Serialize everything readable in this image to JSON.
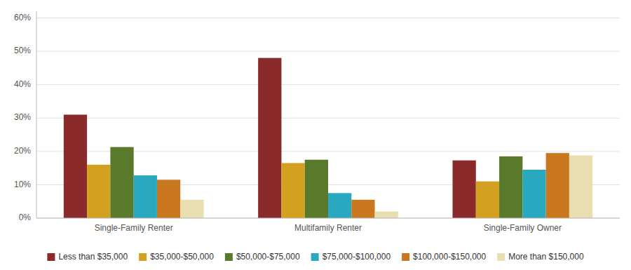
{
  "chart_data": {
    "type": "bar",
    "categories": [
      "Single-Family Renter",
      "Multifamily Renter",
      "Single-Family Owner"
    ],
    "series": [
      {
        "name": "Less than $35,000",
        "color": "#8B2A2A",
        "values": [
          0.31,
          0.48,
          0.173
        ]
      },
      {
        "name": "$35,000-$50,000",
        "color": "#D4A020",
        "values": [
          0.16,
          0.165,
          0.11
        ]
      },
      {
        "name": "$50,000-$75,000",
        "color": "#5A7A2B",
        "values": [
          0.213,
          0.175,
          0.185
        ]
      },
      {
        "name": "$75,000-$100,000",
        "color": "#29A8BF",
        "values": [
          0.128,
          0.075,
          0.145
        ]
      },
      {
        "name": "$100,000-$150,000",
        "color": "#C97820",
        "values": [
          0.115,
          0.055,
          0.195
        ]
      },
      {
        "name": "More than $150,000",
        "color": "#E8DEAF",
        "values": [
          0.055,
          0.02,
          0.188
        ]
      }
    ],
    "ylim": [
      0,
      0.62
    ],
    "yticks": [
      {
        "value": 0.0,
        "label": "0%"
      },
      {
        "value": 0.1,
        "label": "10%"
      },
      {
        "value": 0.2,
        "label": "20%"
      },
      {
        "value": 0.3,
        "label": "30%"
      },
      {
        "value": 0.4,
        "label": "40%"
      },
      {
        "value": 0.5,
        "label": "50%"
      },
      {
        "value": 0.6,
        "label": "60%"
      }
    ],
    "grid": true,
    "legend": "bottom"
  }
}
